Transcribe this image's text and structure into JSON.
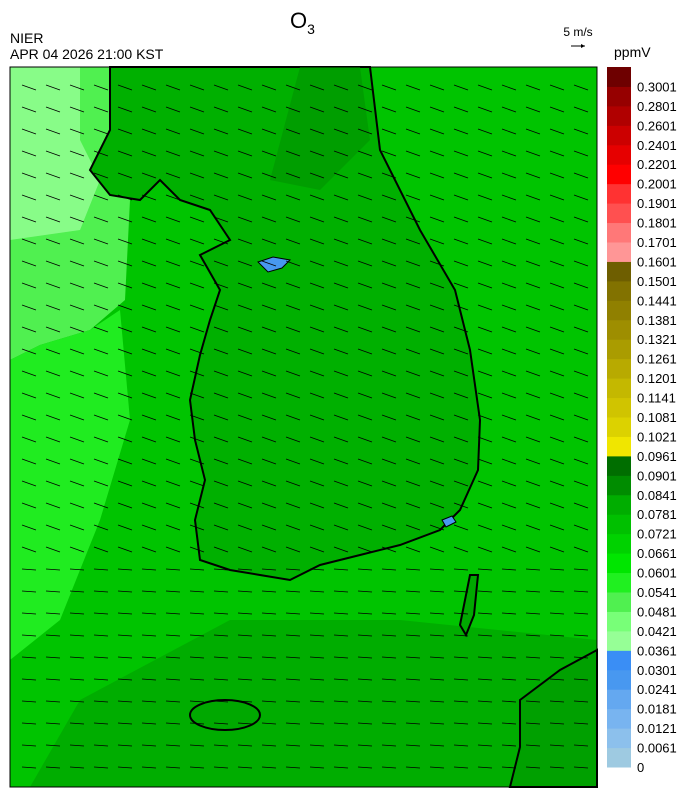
{
  "header": {
    "title": {
      "main": "O",
      "sub": "3"
    },
    "agency": "NIER",
    "datetime": "APR 04 2026 21:00 KST"
  },
  "wind_legend": {
    "label": "5 m/s"
  },
  "colorbar": {
    "unit": "ppmV",
    "labels": [
      "0",
      "0.0061",
      "0.0121",
      "0.0181",
      "0.0241",
      "0.0301",
      "0.0361",
      "0.0421",
      "0.0481",
      "0.0541",
      "0.0601",
      "0.0661",
      "0.0721",
      "0.0781",
      "0.0841",
      "0.0901",
      "0.0961",
      "0.1021",
      "0.1081",
      "0.1141",
      "0.1201",
      "0.1261",
      "0.1321",
      "0.1381",
      "0.1441",
      "0.1501",
      "0.1601",
      "0.1701",
      "0.1801",
      "0.1901",
      "0.2001",
      "0.2201",
      "0.2401",
      "0.2601",
      "0.2801",
      "0.3001"
    ],
    "colors": [
      "#9ecae1",
      "#8cc0ec",
      "#78b4f0",
      "#64a8f0",
      "#4898f0",
      "#3a8ef5",
      "#96ff96",
      "#78ff78",
      "#50f050",
      "#20f020",
      "#00e600",
      "#00d200",
      "#00c000",
      "#00ad00",
      "#008c00",
      "#006e00",
      "#f0e600",
      "#dcd200",
      "#d0c400",
      "#c4b800",
      "#b8aa00",
      "#aa9c00",
      "#9e8e00",
      "#908000",
      "#827200",
      "#6e5e00",
      "#ff9696",
      "#ff7878",
      "#ff5050",
      "#ff3232",
      "#ff0000",
      "#e60000",
      "#cc0000",
      "#b00000",
      "#960000",
      "#6e0000"
    ]
  }
}
